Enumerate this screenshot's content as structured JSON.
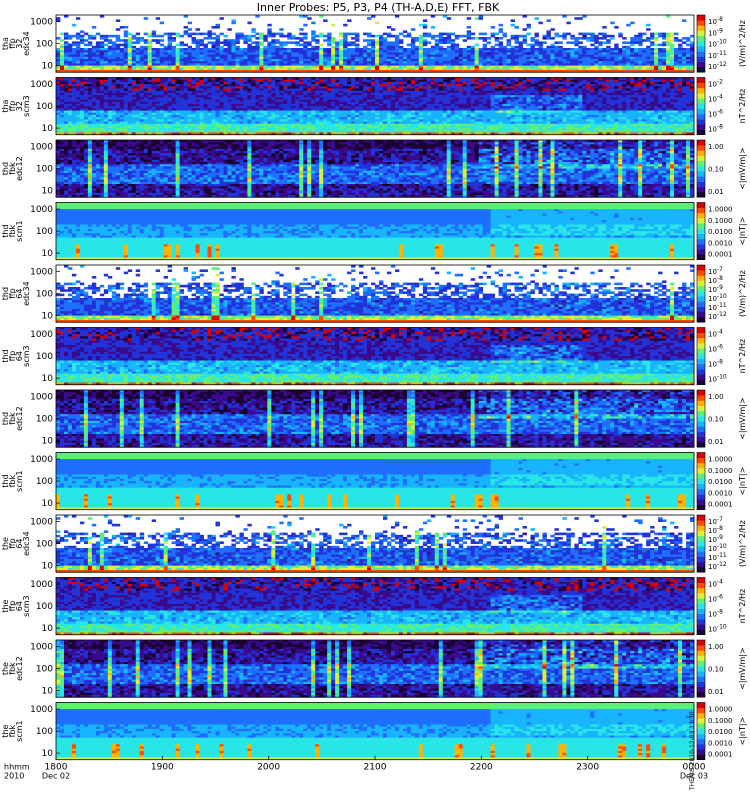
{
  "chart_data": {
    "type": "heatmap",
    "title": "Inner Probes: P5, P3, P4 (TH-A,D,E) FFT, FBK",
    "x_axis": {
      "ticks": [
        "1800",
        "1900",
        "2000",
        "2100",
        "2200",
        "2300",
        "0000"
      ],
      "left_labels": [
        "hhmm",
        "2010"
      ],
      "date_labels": [
        "Dec 02",
        "Dec 03"
      ]
    },
    "panels": [
      {
        "id": "tha-ffp32-edc34",
        "ylabel": [
          "tha",
          "ffp",
          "32",
          "edc34"
        ],
        "yticks": [
          "1000",
          "100",
          "10"
        ],
        "cbar_ticks": [
          "10^-8",
          "10^-9",
          "10^-10",
          "10^-11",
          "10^-12"
        ],
        "cbar_label": "(V/m)^2/Hz",
        "style": "edc34"
      },
      {
        "id": "tha-ffp32-scm3",
        "ylabel": [
          "tha",
          "ffp",
          "32",
          "scm3"
        ],
        "yticks": [
          "1000",
          "100",
          "10"
        ],
        "cbar_ticks": [
          "10^-2",
          "10^-4",
          "10^-6",
          "10^-8"
        ],
        "cbar_label": "nT^2/Hz",
        "style": "scm3"
      },
      {
        "id": "thd-fbk-edc12",
        "ylabel": [
          "thd",
          "fbk",
          "edc12"
        ],
        "yticks": [
          "1000",
          "100",
          "10"
        ],
        "cbar_ticks": [
          "1.00",
          "0.10",
          "0.01"
        ],
        "cbar_label": "<|mV/m|>",
        "style": "edc12"
      },
      {
        "id": "thd-fbk-scm1",
        "ylabel": [
          "thd",
          "fbk",
          "scm1"
        ],
        "yticks": [
          "1000",
          "100",
          "10"
        ],
        "cbar_ticks": [
          "1.0000",
          "0.1000",
          "0.0100",
          "0.0010",
          "0.0001"
        ],
        "cbar_label": "<|nT|>",
        "style": "scm1"
      },
      {
        "id": "thd-ffp64-edc34",
        "ylabel": [
          "thd",
          "ffp",
          "64",
          "edc34"
        ],
        "yticks": [
          "1000",
          "100",
          "10"
        ],
        "cbar_ticks": [
          "10^-7",
          "10^-8",
          "10^-9",
          "10^-10",
          "10^-11",
          "10^-12"
        ],
        "cbar_label": "(V/m)^2/Hz",
        "style": "edc34"
      },
      {
        "id": "thd-ffp64-scm3",
        "ylabel": [
          "thd",
          "ffp",
          "64",
          "scm3"
        ],
        "yticks": [
          "1000",
          "100",
          "10"
        ],
        "cbar_ticks": [
          "10^-4",
          "10^-6",
          "10^-8",
          "10^-10"
        ],
        "cbar_label": "nT^2/Hz",
        "style": "scm3"
      },
      {
        "id": "thd-fbk-edc12-b",
        "ylabel": [
          "thd",
          "fbk",
          "edc12"
        ],
        "yticks": [
          "1000",
          "100",
          "10"
        ],
        "cbar_ticks": [
          "1.00",
          "0.10",
          "0.01"
        ],
        "cbar_label": "<|mV/m|>",
        "style": "edc12"
      },
      {
        "id": "thd-fbk-scm1-b",
        "ylabel": [
          "thd",
          "fbk",
          "scm1"
        ],
        "yticks": [
          "1000",
          "100",
          "10"
        ],
        "cbar_ticks": [
          "1.0000",
          "0.1000",
          "0.0100",
          "0.0010",
          "0.0001"
        ],
        "cbar_label": "<|nT|>",
        "style": "scm1"
      },
      {
        "id": "the-ffp64-edc34",
        "ylabel": [
          "the",
          "ffp",
          "64",
          "edc34"
        ],
        "yticks": [
          "1000",
          "100",
          "10"
        ],
        "cbar_ticks": [
          "10^-7",
          "10^-8",
          "10^-9",
          "10^-10",
          "10^-11",
          "10^-12"
        ],
        "cbar_label": "(V/m)^2/Hz",
        "style": "edc34"
      },
      {
        "id": "the-ffp64-scm3",
        "ylabel": [
          "the",
          "ffp",
          "64",
          "scm3"
        ],
        "yticks": [
          "1000",
          "100",
          "10"
        ],
        "cbar_ticks": [
          "10^-4",
          "10^-6",
          "10^-8",
          "10^-10"
        ],
        "cbar_label": "nT^2/Hz",
        "style": "scm3"
      },
      {
        "id": "the-fbk-edc12",
        "ylabel": [
          "the",
          "fbk",
          "edc12"
        ],
        "yticks": [
          "1000",
          "100",
          "10"
        ],
        "cbar_ticks": [
          "1.00",
          "0.10",
          "0.01"
        ],
        "cbar_label": "<|mV/m|>",
        "style": "edc12"
      },
      {
        "id": "the-fbk-scm1",
        "ylabel": [
          "the",
          "fbk",
          "scm1"
        ],
        "yticks": [
          "1000",
          "100",
          "10"
        ],
        "cbar_ticks": [
          "1.0000",
          "0.1000",
          "0.0100",
          "0.0010",
          "0.0001"
        ],
        "cbar_label": "<|nT|>",
        "style": "scm1"
      }
    ],
    "side_note": "THEMIS 2010-12-03 11:30",
    "colormap": [
      "#1a0033",
      "#3a0a8c",
      "#2233d8",
      "#1e6fff",
      "#19b4ff",
      "#29e6e6",
      "#5cf07a",
      "#d8f23a",
      "#ffb300",
      "#ff4a00",
      "#d80000"
    ]
  }
}
